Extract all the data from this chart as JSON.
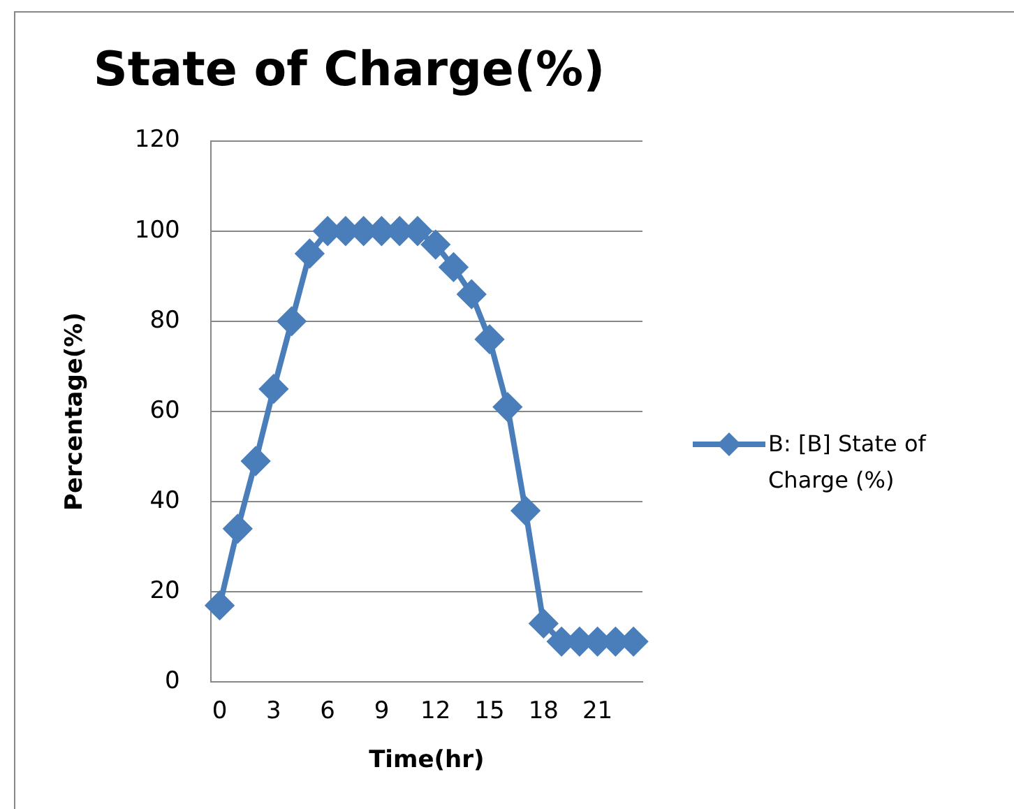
{
  "chart_data": {
    "type": "line",
    "title": "State of Charge(%)",
    "xlabel": "Time(hr)",
    "ylabel": "Percentage(%)",
    "categories": [
      "0",
      null,
      null,
      "3",
      null,
      null,
      "6",
      null,
      null,
      "9",
      null,
      null,
      "12",
      null,
      null,
      "15",
      null,
      null,
      "18",
      null,
      null,
      "21",
      null,
      null
    ],
    "series": [
      {
        "name": "B: [B] State of Charge (%)",
        "color": "#4a7ebb",
        "values": [
          17,
          34,
          49,
          65,
          80,
          95,
          100,
          100,
          100,
          100,
          100,
          100,
          97,
          92,
          86,
          76,
          61,
          38,
          13,
          9,
          9,
          9,
          9,
          9
        ]
      }
    ],
    "ylim": [
      0,
      120
    ],
    "yticks": [
      0,
      20,
      40,
      60,
      80,
      100,
      120
    ],
    "grid": "y",
    "legend": "right",
    "marker": "diamond",
    "line_style": "solid"
  }
}
